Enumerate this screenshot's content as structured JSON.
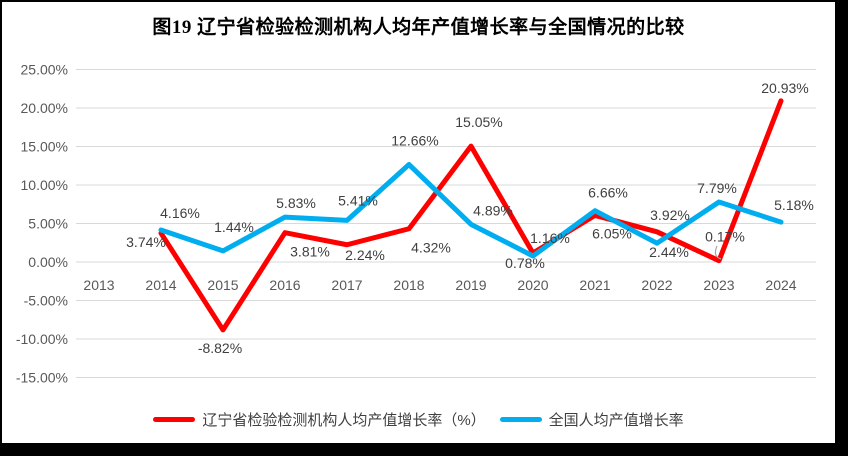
{
  "title": "图19 辽宁省检验检测机构人均年产值增长率与全国情况的比较",
  "chart_data": {
    "type": "line",
    "categories": [
      "2013",
      "2014",
      "2015",
      "2016",
      "2017",
      "2018",
      "2019",
      "2020",
      "2021",
      "2022",
      "2023",
      "2024"
    ],
    "series": [
      {
        "name": "辽宁省检验检测机构人均产值增长率（%）",
        "color": "#FF0000",
        "values": [
          null,
          3.74,
          -8.82,
          3.81,
          2.24,
          4.32,
          15.05,
          1.16,
          6.05,
          3.92,
          0.17,
          20.93
        ]
      },
      {
        "name": "全国人均产值增长率",
        "color": "#00AEEF",
        "values": [
          null,
          4.16,
          1.44,
          5.83,
          5.41,
          12.66,
          4.89,
          0.78,
          6.66,
          2.44,
          7.79,
          5.18
        ]
      }
    ],
    "y_axis": {
      "min": -15,
      "max": 25,
      "step": 5,
      "tick_labels": [
        "25.00%",
        "20.00%",
        "15.00%",
        "10.00%",
        "5.00%",
        "0.00%",
        "-5.00%",
        "-10.00%",
        "-15.00%"
      ]
    },
    "data_label_format": "0.00%",
    "grid": true,
    "legend_position": "bottom",
    "colors": {
      "grid": "#D9D9D9",
      "data_label": "#404040",
      "axis_text": "#595959",
      "leader_line": "#A6A6A6",
      "frame": "#000000",
      "background": "#FFFFFF"
    }
  }
}
